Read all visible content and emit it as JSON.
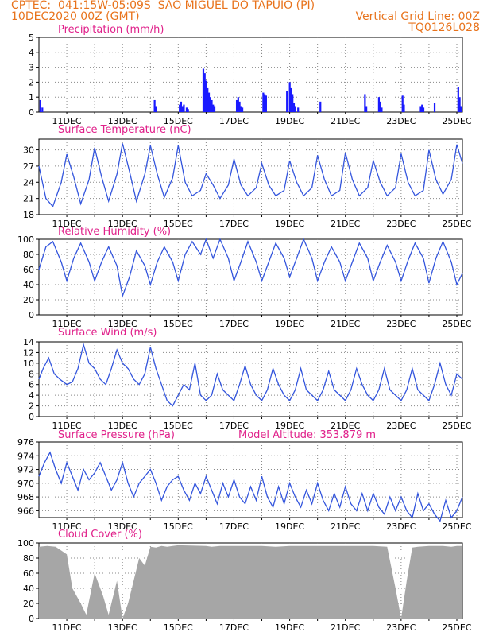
{
  "header": {
    "line1_left": "CPTEC:  041:15W-05:09S  SAO MIGUEL DO TAPUIO (PI)",
    "line2_left": "10DEC2020 00Z (GMT)",
    "line2_right": "Vertical Grid Line: 00Z",
    "line3_right": "TQ0126L028"
  },
  "x_ticks": [
    "11DEC",
    "13DEC",
    "15DEC",
    "17DEC",
    "19DEC",
    "21DEC",
    "23DEC",
    "25DEC"
  ],
  "chart_data": [
    {
      "type": "bar",
      "title": "Precipitation (mm/h)",
      "ylim": [
        0,
        5
      ],
      "yticks": [
        "0",
        "1",
        "2",
        "3",
        "4",
        "5"
      ],
      "color": "#1a1aff",
      "x_unit": "days since 10DEC 00Z",
      "x": [
        0.05,
        0.12,
        4.15,
        4.2,
        5.05,
        5.1,
        5.15,
        5.2,
        5.3,
        5.35,
        5.9,
        5.95,
        6.0,
        6.05,
        6.1,
        6.15,
        6.2,
        6.25,
        6.3,
        7.1,
        7.15,
        7.2,
        7.25,
        7.3,
        8.05,
        8.1,
        8.15,
        8.9,
        9.0,
        9.05,
        9.1,
        9.15,
        9.2,
        9.3,
        10.1,
        11.7,
        11.75,
        12.2,
        12.25,
        12.3,
        13.05,
        13.1,
        13.7,
        13.75,
        13.8,
        14.2,
        15.05,
        15.1,
        15.15
      ],
      "values": [
        0.8,
        0.3,
        0.8,
        0.4,
        0.5,
        0.7,
        0.4,
        0.5,
        0.3,
        0.2,
        2.9,
        2.6,
        2.1,
        1.6,
        1.3,
        1.0,
        0.8,
        0.5,
        0.4,
        0.8,
        1.0,
        0.7,
        0.4,
        0.3,
        1.3,
        1.2,
        1.1,
        1.4,
        2.0,
        1.6,
        1.2,
        0.6,
        0.4,
        0.3,
        0.7,
        1.2,
        0.4,
        1.0,
        0.7,
        0.3,
        1.1,
        0.5,
        0.4,
        0.5,
        0.3,
        0.6,
        1.7,
        1.0,
        0.4
      ]
    },
    {
      "type": "line",
      "title": "Surface Temperature (nC)",
      "ylim": [
        18,
        32
      ],
      "yticks": [
        "18",
        "21",
        "24",
        "27",
        "30"
      ],
      "color": "#3355dd",
      "x_unit": "days since 10DEC 00Z",
      "x": [
        0,
        0.25,
        0.5,
        0.8,
        1,
        1.25,
        1.5,
        1.8,
        2,
        2.25,
        2.5,
        2.8,
        3,
        3.25,
        3.5,
        3.8,
        4,
        4.25,
        4.5,
        4.8,
        5,
        5.25,
        5.5,
        5.8,
        6,
        6.25,
        6.5,
        6.8,
        7,
        7.25,
        7.5,
        7.8,
        8,
        8.25,
        8.5,
        8.8,
        9,
        9.25,
        9.5,
        9.8,
        10,
        10.25,
        10.5,
        10.8,
        11,
        11.25,
        11.5,
        11.8,
        12,
        12.25,
        12.5,
        12.8,
        13,
        13.25,
        13.5,
        13.8,
        14,
        14.25,
        14.5,
        14.8,
        15,
        15.2
      ],
      "values": [
        27,
        21,
        19.5,
        24,
        29.2,
        25,
        20,
        24.5,
        30.4,
        25,
        20.5,
        25.5,
        31.2,
        26,
        20.5,
        25.5,
        30.8,
        25.5,
        21.2,
        24.8,
        30.8,
        24,
        21.5,
        22.5,
        25.6,
        23.5,
        21,
        23.5,
        28.3,
        23.5,
        21.5,
        23,
        27.5,
        23.5,
        21.5,
        22.5,
        28,
        24,
        21.5,
        23,
        29,
        24.5,
        21.5,
        22.5,
        29.5,
        24.5,
        21.5,
        23,
        28,
        24,
        21.5,
        23,
        29.3,
        24,
        21.5,
        22.5,
        30,
        24.5,
        21.8,
        24.5,
        31,
        27.5
      ]
    },
    {
      "type": "line",
      "title": "Relative Humidity (%)",
      "ylim": [
        0,
        100
      ],
      "yticks": [
        "0",
        "20",
        "40",
        "60",
        "80",
        "100"
      ],
      "color": "#3355dd",
      "x_unit": "days since 10DEC 00Z",
      "x": [
        0,
        0.25,
        0.5,
        0.8,
        1,
        1.25,
        1.5,
        1.8,
        2,
        2.25,
        2.5,
        2.8,
        3,
        3.25,
        3.5,
        3.8,
        4,
        4.25,
        4.5,
        4.8,
        5,
        5.25,
        5.5,
        5.8,
        6,
        6.25,
        6.5,
        6.8,
        7,
        7.25,
        7.5,
        7.8,
        8,
        8.25,
        8.5,
        8.8,
        9,
        9.25,
        9.5,
        9.8,
        10,
        10.25,
        10.5,
        10.8,
        11,
        11.25,
        11.5,
        11.8,
        12,
        12.25,
        12.5,
        12.8,
        13,
        13.25,
        13.5,
        13.8,
        14,
        14.25,
        14.5,
        14.8,
        15,
        15.2
      ],
      "values": [
        60,
        90,
        97,
        70,
        45,
        75,
        95,
        70,
        45,
        70,
        90,
        65,
        25,
        50,
        85,
        65,
        40,
        70,
        90,
        70,
        45,
        80,
        97,
        80,
        100,
        75,
        100,
        75,
        45,
        70,
        97,
        70,
        45,
        70,
        95,
        75,
        50,
        75,
        100,
        75,
        45,
        70,
        90,
        70,
        45,
        70,
        95,
        75,
        45,
        70,
        92,
        70,
        45,
        72,
        95,
        75,
        42,
        75,
        97,
        70,
        40,
        55
      ]
    },
    {
      "type": "line",
      "title": "Surface Wind (m/s)",
      "ylim": [
        0,
        14
      ],
      "yticks": [
        "0",
        "2",
        "4",
        "6",
        "8",
        "10",
        "12",
        "14"
      ],
      "color": "#3355dd",
      "x_unit": "days since 10DEC 00Z",
      "x": [
        0,
        0.15,
        0.35,
        0.55,
        0.75,
        1,
        1.2,
        1.4,
        1.6,
        1.8,
        2,
        2.2,
        2.4,
        2.6,
        2.8,
        3,
        3.2,
        3.4,
        3.6,
        3.8,
        4,
        4.2,
        4.4,
        4.6,
        4.8,
        5,
        5.2,
        5.4,
        5.6,
        5.8,
        6,
        6.2,
        6.4,
        6.6,
        6.8,
        7,
        7.2,
        7.4,
        7.6,
        7.8,
        8,
        8.2,
        8.4,
        8.6,
        8.8,
        9,
        9.2,
        9.4,
        9.6,
        9.8,
        10,
        10.2,
        10.4,
        10.6,
        10.8,
        11,
        11.2,
        11.4,
        11.6,
        11.8,
        12,
        12.2,
        12.4,
        12.6,
        12.8,
        13,
        13.2,
        13.4,
        13.6,
        13.8,
        14,
        14.2,
        14.4,
        14.6,
        14.8,
        15,
        15.2
      ],
      "values": [
        7,
        9,
        11,
        8,
        7,
        6,
        6.5,
        9,
        13.5,
        10,
        9,
        7,
        6,
        9,
        12.5,
        10,
        9,
        7,
        6,
        8,
        13,
        9,
        6,
        3,
        2,
        4,
        6,
        5,
        10,
        4,
        3,
        4,
        8,
        5,
        4,
        3,
        6,
        9.5,
        6,
        4,
        3,
        5,
        9,
        6,
        4,
        3,
        5,
        9,
        5,
        4,
        3,
        5,
        8.5,
        5,
        4,
        3,
        5,
        9,
        6,
        4,
        3,
        5,
        9,
        5,
        4,
        3,
        5,
        9,
        5,
        4,
        3,
        6,
        10,
        6,
        4,
        8,
        7
      ]
    },
    {
      "type": "line",
      "title": "Surface Pressure (hPa)",
      "annotation": "Model Altitude: 353.879 m",
      "ylim": [
        965,
        976
      ],
      "yticks": [
        "966",
        "968",
        "970",
        "972",
        "974",
        "976"
      ],
      "color": "#3355dd",
      "x_unit": "days since 10DEC 00Z",
      "x": [
        0,
        0.2,
        0.4,
        0.6,
        0.8,
        1,
        1.2,
        1.4,
        1.6,
        1.8,
        2,
        2.2,
        2.4,
        2.6,
        2.8,
        3,
        3.2,
        3.4,
        3.6,
        3.8,
        4,
        4.2,
        4.4,
        4.6,
        4.8,
        5,
        5.2,
        5.4,
        5.6,
        5.8,
        6,
        6.2,
        6.4,
        6.6,
        6.8,
        7,
        7.2,
        7.4,
        7.6,
        7.8,
        8,
        8.2,
        8.4,
        8.6,
        8.8,
        9,
        9.2,
        9.4,
        9.6,
        9.8,
        10,
        10.2,
        10.4,
        10.6,
        10.8,
        11,
        11.2,
        11.4,
        11.6,
        11.8,
        12,
        12.2,
        12.4,
        12.6,
        12.8,
        13,
        13.2,
        13.4,
        13.6,
        13.8,
        14,
        14.2,
        14.4,
        14.6,
        14.8,
        15,
        15.2
      ],
      "values": [
        971,
        973,
        974.5,
        972,
        970,
        973,
        971,
        969,
        972,
        970.5,
        971.5,
        973,
        971,
        969,
        970.5,
        973,
        970,
        968,
        970,
        971,
        972,
        970,
        967.5,
        969.5,
        970.5,
        971,
        969,
        967.5,
        970,
        968.5,
        971,
        969,
        967,
        970,
        968,
        970.5,
        968,
        967,
        969.5,
        967.5,
        971,
        968,
        966.5,
        969.5,
        967,
        970,
        968,
        966.5,
        969,
        967,
        970,
        967.5,
        966,
        968.5,
        966.5,
        969.5,
        967,
        966,
        968.5,
        966,
        968.5,
        966.5,
        965.5,
        968,
        966,
        968,
        966,
        965,
        968.5,
        966,
        967,
        965.5,
        964.5,
        967.5,
        965,
        966,
        968
      ]
    },
    {
      "type": "area",
      "title": "Cloud Cover (%)",
      "ylim": [
        0,
        100
      ],
      "yticks": [
        "0",
        "20",
        "40",
        "60",
        "80",
        "100"
      ],
      "color": "#a6a6a6",
      "x_unit": "days since 10DEC 00Z",
      "x": [
        0,
        0.3,
        0.6,
        1.0,
        1.2,
        1.5,
        1.7,
        2.0,
        2.3,
        2.5,
        2.8,
        3.0,
        3.2,
        3.4,
        3.6,
        3.8,
        4.0,
        4.2,
        4.4,
        4.6,
        4.8,
        5.0,
        6.0,
        6.2,
        6.5,
        7.0,
        7.5,
        8.0,
        8.5,
        9.0,
        9.5,
        10.0,
        10.5,
        11.0,
        11.5,
        12.0,
        12.5,
        12.8,
        13.0,
        13.2,
        13.4,
        13.6,
        14.0,
        14.5,
        14.8,
        15.0,
        15.2
      ],
      "values": [
        95,
        96,
        95,
        85,
        40,
        20,
        5,
        60,
        30,
        5,
        50,
        0,
        20,
        50,
        80,
        70,
        95,
        94,
        96,
        95,
        96,
        97,
        96,
        95,
        96,
        96,
        96,
        96,
        95,
        96,
        96,
        96,
        96,
        96,
        96,
        96,
        95,
        40,
        0,
        50,
        94,
        95,
        96,
        96,
        95,
        96,
        96
      ]
    }
  ]
}
